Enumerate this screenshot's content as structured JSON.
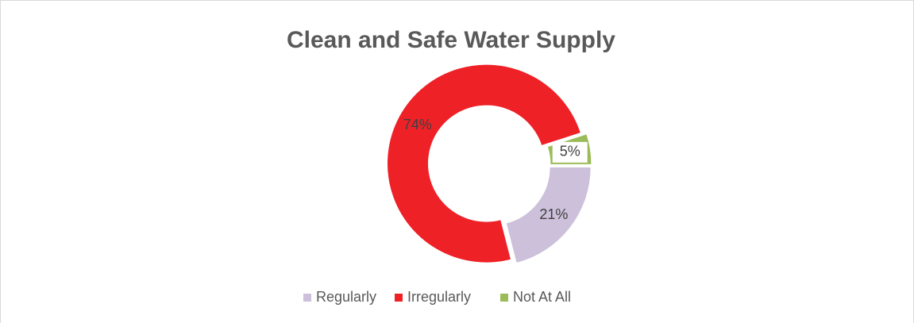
{
  "chart_data": {
    "type": "pie",
    "title": "Clean and Safe Water Supply",
    "categories": [
      "Regularly",
      "Irregularly",
      "Not At All"
    ],
    "values": [
      21,
      74,
      5
    ],
    "value_labels": [
      "21%",
      "74%",
      "5%"
    ],
    "colors": [
      "#ccc0da",
      "#ee2127",
      "#9bbb59"
    ],
    "donut": true,
    "legend": "bottom"
  }
}
